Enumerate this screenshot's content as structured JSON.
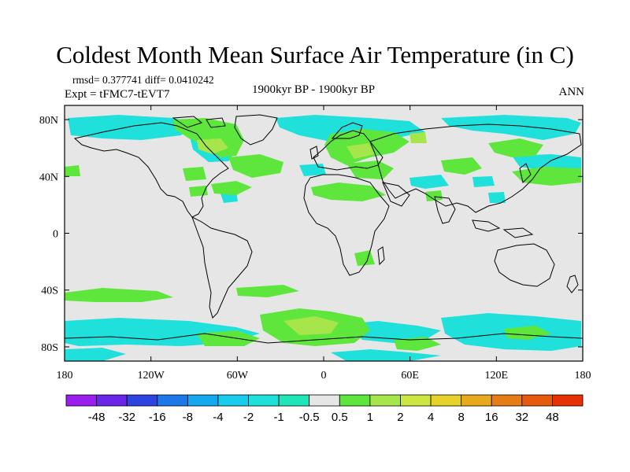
{
  "title": "Coldest Month Mean Surface Air Temperature (in C)",
  "stats": "rmsd= 0.377741 diff= 0.0410242",
  "experiment": "Expt = tFMC7-tEVT7",
  "period": "1900kyr BP - 1900kyr BP",
  "season": "ANN",
  "axes": {
    "lon_ticks": [
      "180",
      "120W",
      "60W",
      "0",
      "60E",
      "120E",
      "180"
    ],
    "lat_ticks": [
      "80N",
      "40N",
      "0",
      "40S",
      "80S"
    ]
  },
  "colorbar": {
    "levels": [
      "-48",
      "-32",
      "-16",
      "-8",
      "-4",
      "-2",
      "-1",
      "-0.5",
      "0.5",
      "1",
      "2",
      "4",
      "8",
      "16",
      "32",
      "48"
    ],
    "colors": [
      "#9a1eee",
      "#6a26e8",
      "#2e44e0",
      "#1c78e8",
      "#14a8ee",
      "#18ccee",
      "#20e0dc",
      "#1fe6b8",
      "#e6e6e6",
      "#5fe63c",
      "#a6e64a",
      "#cee640",
      "#e6d22a",
      "#e6aa1c",
      "#e67c14",
      "#e65a0e",
      "#e63006"
    ]
  },
  "palette": {
    "background": "#e6e6e6",
    "land_outline": "#000000",
    "cool": "#20e0dc",
    "warm": "#5fe63c",
    "warm_strong": "#a6e64a"
  }
}
